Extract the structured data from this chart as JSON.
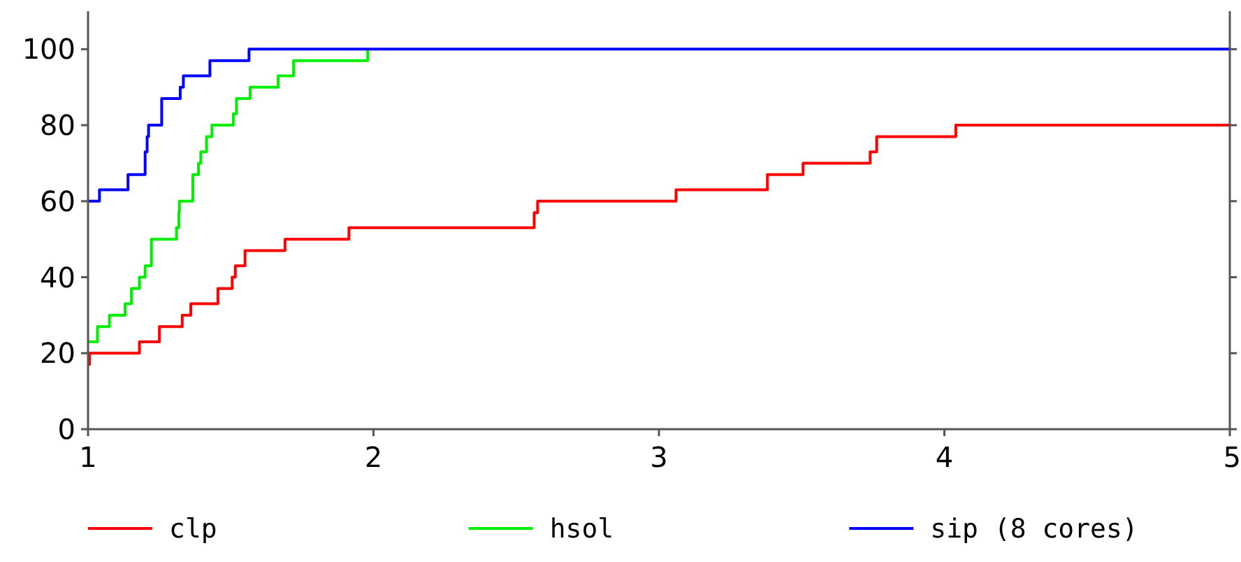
{
  "chart_data": {
    "type": "step",
    "xlim": [
      1,
      5
    ],
    "xticks": [
      1,
      2,
      3,
      4,
      5
    ],
    "ylim": [
      0,
      110
    ],
    "yticks": [
      0,
      20,
      40,
      60,
      80,
      100
    ],
    "legend": "bottom",
    "grid": false,
    "series": [
      {
        "name": "clp",
        "color": "#ff0000",
        "x": [
          1,
          1.005,
          1.18,
          1.25,
          1.33,
          1.36,
          1.455,
          1.505,
          1.516,
          1.55,
          1.69,
          1.914,
          2.563,
          2.575,
          3.06,
          3.38,
          3.505,
          3.74,
          3.763,
          4.04,
          5
        ],
        "values": [
          17,
          20,
          23,
          27,
          30,
          33,
          37,
          40,
          43,
          47,
          50,
          53,
          57,
          60,
          63,
          67,
          70,
          73,
          77,
          80,
          80
        ]
      },
      {
        "name": "hsol",
        "color": "#00ee00",
        "x": [
          1,
          1.033,
          1.075,
          1.13,
          1.152,
          1.18,
          1.2,
          1.222,
          1.31,
          1.318,
          1.32,
          1.367,
          1.387,
          1.395,
          1.415,
          1.434,
          1.509,
          1.52,
          1.568,
          1.666,
          1.72,
          1.98
        ],
        "values": [
          23,
          27,
          30,
          33,
          37,
          40,
          43,
          50,
          53,
          57,
          60,
          67,
          70,
          73,
          77,
          80,
          83,
          87,
          90,
          93,
          97,
          100
        ]
      },
      {
        "name": "sip (8 cores)",
        "color": "#0000ff",
        "x": [
          1,
          1.04,
          1.14,
          1.2,
          1.207,
          1.212,
          1.258,
          1.323,
          1.334,
          1.427,
          1.564,
          5
        ],
        "values": [
          60,
          63,
          67,
          73,
          77,
          80,
          87,
          90,
          93,
          97,
          100,
          100
        ]
      }
    ]
  }
}
